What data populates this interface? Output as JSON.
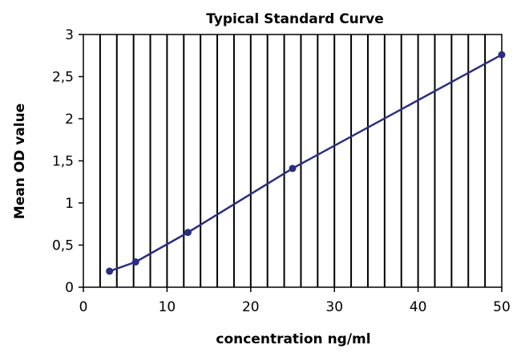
{
  "chart_data": {
    "type": "line",
    "title": "Typical Standard Curve",
    "xlabel": "concentration ng/ml",
    "ylabel": "Mean OD value",
    "xlim": [
      0,
      50
    ],
    "ylim": [
      0,
      3
    ],
    "x_ticks": [
      0,
      10,
      20,
      30,
      40,
      50
    ],
    "x_tick_labels": [
      "0",
      "10",
      "20",
      "30",
      "40",
      "50"
    ],
    "y_ticks": [
      0,
      0.5,
      1,
      1.5,
      2,
      2.5,
      3
    ],
    "y_tick_labels": [
      "0",
      "0,5",
      "1",
      "1,5",
      "2",
      "2,5",
      "3"
    ],
    "vertical_grid_step": 2,
    "grid": "vertical",
    "series": [
      {
        "x": [
          3.125,
          6.25,
          12.5,
          25,
          50
        ],
        "y": [
          0.19,
          0.3,
          0.65,
          1.41,
          2.76
        ]
      }
    ],
    "colors": {
      "series": "#2b2d80",
      "grid": "#000000",
      "axis": "#000000"
    }
  }
}
